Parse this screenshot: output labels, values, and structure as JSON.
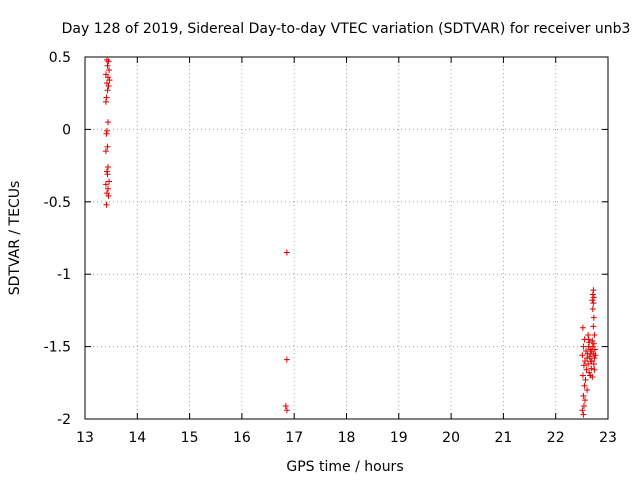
{
  "chart_data": {
    "type": "scatter",
    "title": "Day 128 of 2019, Sidereal Day-to-day VTEC variation (SDTVAR) for receiver unb3",
    "xlabel": "GPS time / hours",
    "ylabel": "SDTVAR / TECUs",
    "xlim": [
      13,
      23
    ],
    "ylim": [
      -2,
      0.5
    ],
    "xticks": [
      13,
      14,
      15,
      16,
      17,
      18,
      19,
      20,
      21,
      22,
      23
    ],
    "yticks": [
      -2,
      -1.5,
      -1,
      -0.5,
      0,
      0.5
    ],
    "xtick_labels": [
      "13",
      "14",
      "15",
      "16",
      "17",
      "18",
      "19",
      "20",
      "21",
      "22",
      "23"
    ],
    "ytick_labels": [
      "-2",
      "-1.5",
      "-1",
      "-0.5",
      "0",
      "0.5"
    ],
    "grid": true,
    "marker": "+",
    "color": "#e00000",
    "series": [
      {
        "name": "SDTVAR",
        "points": [
          [
            13.42,
            0.48
          ],
          [
            13.45,
            0.47
          ],
          [
            13.43,
            0.44
          ],
          [
            13.46,
            0.41
          ],
          [
            13.4,
            0.38
          ],
          [
            13.44,
            0.36
          ],
          [
            13.47,
            0.34
          ],
          [
            13.42,
            0.32
          ],
          [
            13.45,
            0.3
          ],
          [
            13.43,
            0.27
          ],
          [
            13.41,
            0.22
          ],
          [
            13.4,
            0.19
          ],
          [
            13.44,
            0.05
          ],
          [
            13.42,
            -0.01
          ],
          [
            13.41,
            -0.03
          ],
          [
            13.43,
            -0.12
          ],
          [
            13.4,
            -0.15
          ],
          [
            13.44,
            -0.26
          ],
          [
            13.42,
            -0.29
          ],
          [
            13.43,
            -0.31
          ],
          [
            13.46,
            -0.36
          ],
          [
            13.4,
            -0.38
          ],
          [
            13.44,
            -0.41
          ],
          [
            13.42,
            -0.44
          ],
          [
            13.45,
            -0.46
          ],
          [
            13.41,
            -0.52
          ],
          [
            16.86,
            -0.85
          ],
          [
            16.86,
            -1.59
          ],
          [
            16.84,
            -1.91
          ],
          [
            16.86,
            -1.94
          ],
          [
            22.52,
            -1.37
          ],
          [
            22.55,
            -1.45
          ],
          [
            22.53,
            -1.5
          ],
          [
            22.58,
            -1.53
          ],
          [
            22.51,
            -1.56
          ],
          [
            22.56,
            -1.6
          ],
          [
            22.54,
            -1.63
          ],
          [
            22.59,
            -1.66
          ],
          [
            22.52,
            -1.7
          ],
          [
            22.57,
            -1.73
          ],
          [
            22.55,
            -1.77
          ],
          [
            22.6,
            -1.8
          ],
          [
            22.53,
            -1.84
          ],
          [
            22.56,
            -1.87
          ],
          [
            22.54,
            -1.91
          ],
          [
            22.51,
            -1.94
          ],
          [
            22.53,
            -1.97
          ],
          [
            22.62,
            -1.42
          ],
          [
            22.64,
            -1.47
          ],
          [
            22.63,
            -1.5
          ],
          [
            22.66,
            -1.52
          ],
          [
            22.61,
            -1.55
          ],
          [
            22.65,
            -1.57
          ],
          [
            22.67,
            -1.6
          ],
          [
            22.62,
            -1.62
          ],
          [
            22.68,
            -1.65
          ],
          [
            22.64,
            -1.68
          ],
          [
            22.66,
            -1.7
          ],
          [
            22.7,
            -1.71
          ],
          [
            22.6,
            -1.58
          ],
          [
            22.69,
            -1.53
          ],
          [
            22.63,
            -1.45
          ],
          [
            22.72,
            -1.11
          ],
          [
            22.71,
            -1.14
          ],
          [
            22.73,
            -1.16
          ],
          [
            22.7,
            -1.18
          ],
          [
            22.72,
            -1.2
          ],
          [
            22.71,
            -1.24
          ],
          [
            22.73,
            -1.3
          ],
          [
            22.72,
            -1.36
          ],
          [
            22.74,
            -1.42
          ],
          [
            22.73,
            -1.48
          ],
          [
            22.75,
            -1.52
          ],
          [
            22.72,
            -1.55
          ],
          [
            22.74,
            -1.58
          ],
          [
            22.73,
            -1.62
          ],
          [
            22.71,
            -1.5
          ],
          [
            22.76,
            -1.56
          ],
          [
            22.7,
            -1.46
          ],
          [
            22.69,
            -1.6
          ],
          [
            22.74,
            -1.66
          ],
          [
            22.67,
            -1.55
          ]
        ]
      }
    ]
  }
}
